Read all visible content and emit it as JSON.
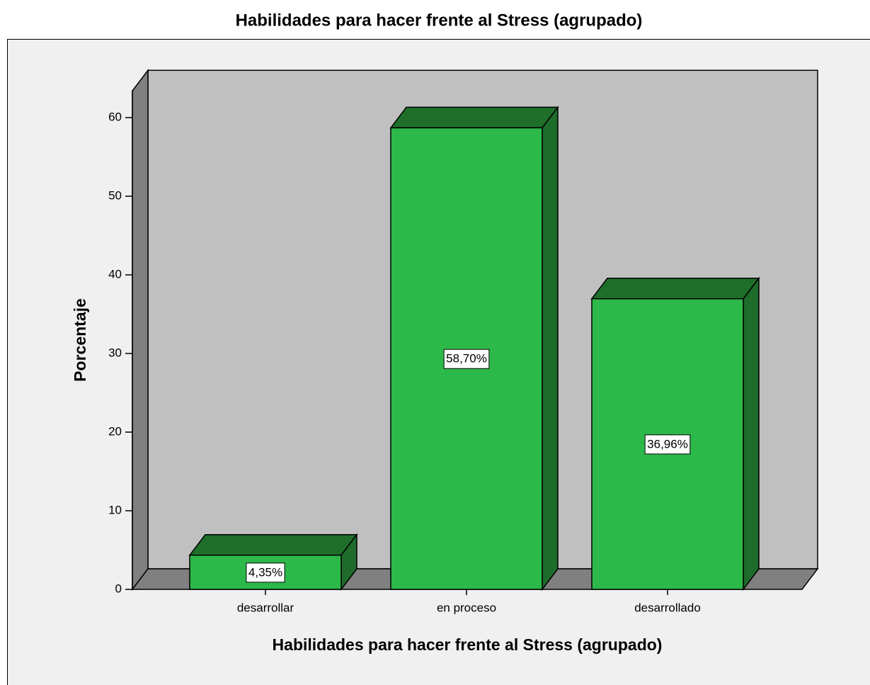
{
  "chart_data": {
    "type": "bar3d",
    "title": "Habilidades para hacer frente al Stress (agrupado)",
    "xlabel": "Habilidades para hacer frente al Stress (agrupado)",
    "ylabel": "Porcentaje",
    "categories": [
      "desarrollar",
      "en proceso",
      "desarrollado"
    ],
    "values": [
      4.35,
      58.7,
      36.96
    ],
    "value_labels": [
      "4,35%",
      "58,70%",
      "36,96%"
    ],
    "color": "#2db84a",
    "ylim": [
      0,
      63.4
    ],
    "yticks": [
      0,
      10,
      20,
      30,
      40,
      50,
      60
    ]
  }
}
